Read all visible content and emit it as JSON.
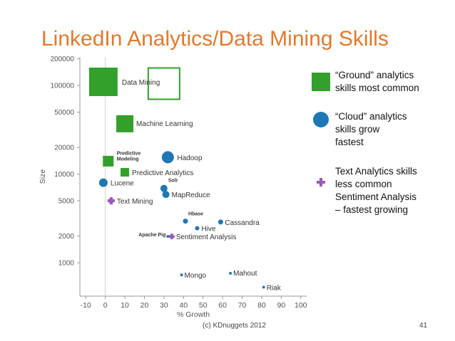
{
  "slide": {
    "title": "LinkedIn Analytics/Data Mining Skills",
    "footer": "(c) KDnuggets 2012",
    "page_number": "41"
  },
  "legend": [
    {
      "shape": "square",
      "color": "#33a02c",
      "text": "“Ground” analytics\nskills most common"
    },
    {
      "shape": "circle",
      "color": "#1f77b4",
      "text": "“Cloud” analytics\nskills grow\nfastest"
    },
    {
      "shape": "plus",
      "color": "#9b59b6",
      "text": "Text Analytics skills\nless common\nSentiment Analysis\n– fastest  growing"
    }
  ],
  "chart_data": {
    "type": "scatter",
    "xlabel": "% Growth",
    "ylabel": "Size",
    "xlim": [
      -13,
      103
    ],
    "ylim": [
      420,
      210000
    ],
    "y_scale": "log",
    "x_ticks": [
      -10,
      0,
      10,
      20,
      30,
      40,
      50,
      60,
      70,
      80,
      90,
      100
    ],
    "y_ticks": [
      1000,
      2000,
      5000,
      10000,
      20000,
      50000,
      100000,
      200000
    ],
    "grid": false,
    "colors": {
      "ground": "#33a02c",
      "cloud": "#1f77b4",
      "text": "#9b59b6"
    },
    "points": [
      {
        "label": "Data Mining",
        "x": -1,
        "y": 110000,
        "shape": "square",
        "size": 40,
        "label_bold": false
      },
      {
        "label": "Machine Learning",
        "x": 10,
        "y": 37000,
        "shape": "square",
        "size": 24,
        "label_bold": false
      },
      {
        "label": "Predictive Modeling",
        "x": 1.5,
        "y": 14000,
        "shape": "square",
        "size": 15,
        "label_bold": true
      },
      {
        "label": "Predictive Analytics",
        "x": 10,
        "y": 10500,
        "shape": "square",
        "size": 12,
        "label_bold": false
      },
      {
        "label": "Hadoop",
        "x": 32,
        "y": 15500,
        "shape": "circle",
        "size": 17,
        "label_bold": false
      },
      {
        "label": "Lucene",
        "x": -1,
        "y": 8000,
        "shape": "circle",
        "size": 12,
        "label_bold": false
      },
      {
        "label": "Solr",
        "x": 30,
        "y": 6900,
        "shape": "circle",
        "size": 10,
        "label_bold": true
      },
      {
        "label": "MapReduce",
        "x": 31,
        "y": 5900,
        "shape": "circle",
        "size": 10,
        "label_bold": false
      },
      {
        "label": "Text Mining",
        "x": 3,
        "y": 5000,
        "shape": "plus",
        "size": 10,
        "label_bold": false
      },
      {
        "label": "Hbase",
        "x": 41,
        "y": 2950,
        "shape": "circle",
        "size": 7,
        "label_bold": true
      },
      {
        "label": "Cassandra",
        "x": 59,
        "y": 2880,
        "shape": "circle",
        "size": 7,
        "label_bold": false
      },
      {
        "label": "Hive",
        "x": 47,
        "y": 2450,
        "shape": "circle",
        "size": 6,
        "label_bold": false
      },
      {
        "label": "Apache Pig",
        "x": 32,
        "y": 1980,
        "shape": "circle",
        "size": 4,
        "label_bold": true
      },
      {
        "label": "Sentiment Analysis",
        "x": 34,
        "y": 1980,
        "shape": "plus",
        "size": 8,
        "label_bold": false
      },
      {
        "label": "Mongo",
        "x": 39,
        "y": 730,
        "shape": "circle",
        "size": 4,
        "label_bold": false
      },
      {
        "label": "Mahout",
        "x": 64,
        "y": 760,
        "shape": "circle",
        "size": 4,
        "label_bold": false
      },
      {
        "label": "Riak",
        "x": 81,
        "y": 530,
        "shape": "circle",
        "size": 4,
        "label_bold": false
      }
    ],
    "annotations": [
      {
        "type": "outline-square",
        "x": 30,
        "y": 105000,
        "size": 44,
        "color": "#33a02c"
      }
    ]
  }
}
